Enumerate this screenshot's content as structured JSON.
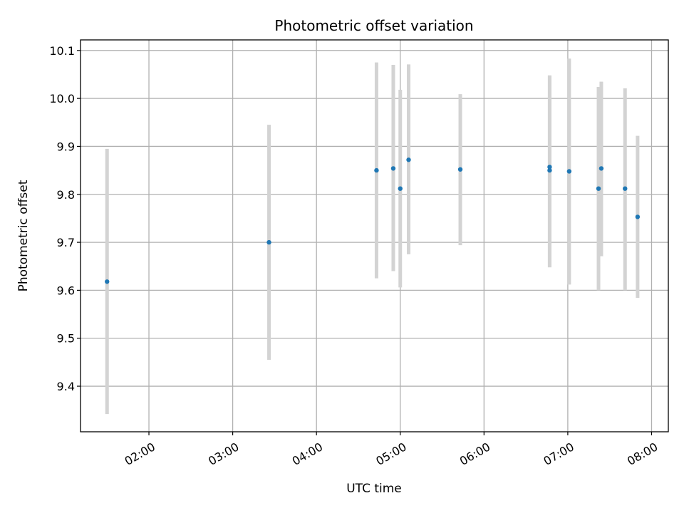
{
  "chart_data": {
    "type": "scatter",
    "title": "Photometric offset variation",
    "xlabel": "UTC time",
    "ylabel": "Photometric offset",
    "x_ticks": [
      "02:00",
      "03:00",
      "04:00",
      "05:00",
      "06:00",
      "07:00",
      "08:00"
    ],
    "y_ticks": [
      "9.4",
      "9.5",
      "9.6",
      "9.7",
      "9.8",
      "9.9",
      "10.0",
      "10.1"
    ],
    "xlim": [
      "01:11",
      "08:12"
    ],
    "ylim": [
      9.305,
      10.122
    ],
    "grid": true,
    "point_color": "#1f77b4",
    "errorbar_color": "#d3d3d3",
    "points": [
      {
        "x": "01:30",
        "y": 9.618,
        "ylow": 9.342,
        "yhigh": 9.895
      },
      {
        "x": "03:26",
        "y": 9.7,
        "ylow": 9.455,
        "yhigh": 9.945
      },
      {
        "x": "04:43",
        "y": 9.85,
        "ylow": 9.625,
        "yhigh": 10.075
      },
      {
        "x": "04:55",
        "y": 9.854,
        "ylow": 9.64,
        "yhigh": 10.07
      },
      {
        "x": "05:00",
        "y": 9.812,
        "ylow": 9.606,
        "yhigh": 10.018
      },
      {
        "x": "05:06",
        "y": 9.872,
        "ylow": 9.675,
        "yhigh": 10.071
      },
      {
        "x": "05:43",
        "y": 9.852,
        "ylow": 9.694,
        "yhigh": 10.009
      },
      {
        "x": "06:47",
        "y": 9.857,
        "ylow": 9.648,
        "yhigh": 10.048
      },
      {
        "x": "06:47",
        "y": 9.85,
        "ylow": 9.648,
        "yhigh": 10.048
      },
      {
        "x": "07:01",
        "y": 9.848,
        "ylow": 9.612,
        "yhigh": 10.083
      },
      {
        "x": "07:22",
        "y": 9.812,
        "ylow": 9.6,
        "yhigh": 10.024
      },
      {
        "x": "07:24",
        "y": 9.854,
        "ylow": 9.671,
        "yhigh": 10.035
      },
      {
        "x": "07:41",
        "y": 9.812,
        "ylow": 9.6,
        "yhigh": 10.021
      },
      {
        "x": "07:50",
        "y": 9.753,
        "ylow": 9.584,
        "yhigh": 9.922
      }
    ]
  }
}
